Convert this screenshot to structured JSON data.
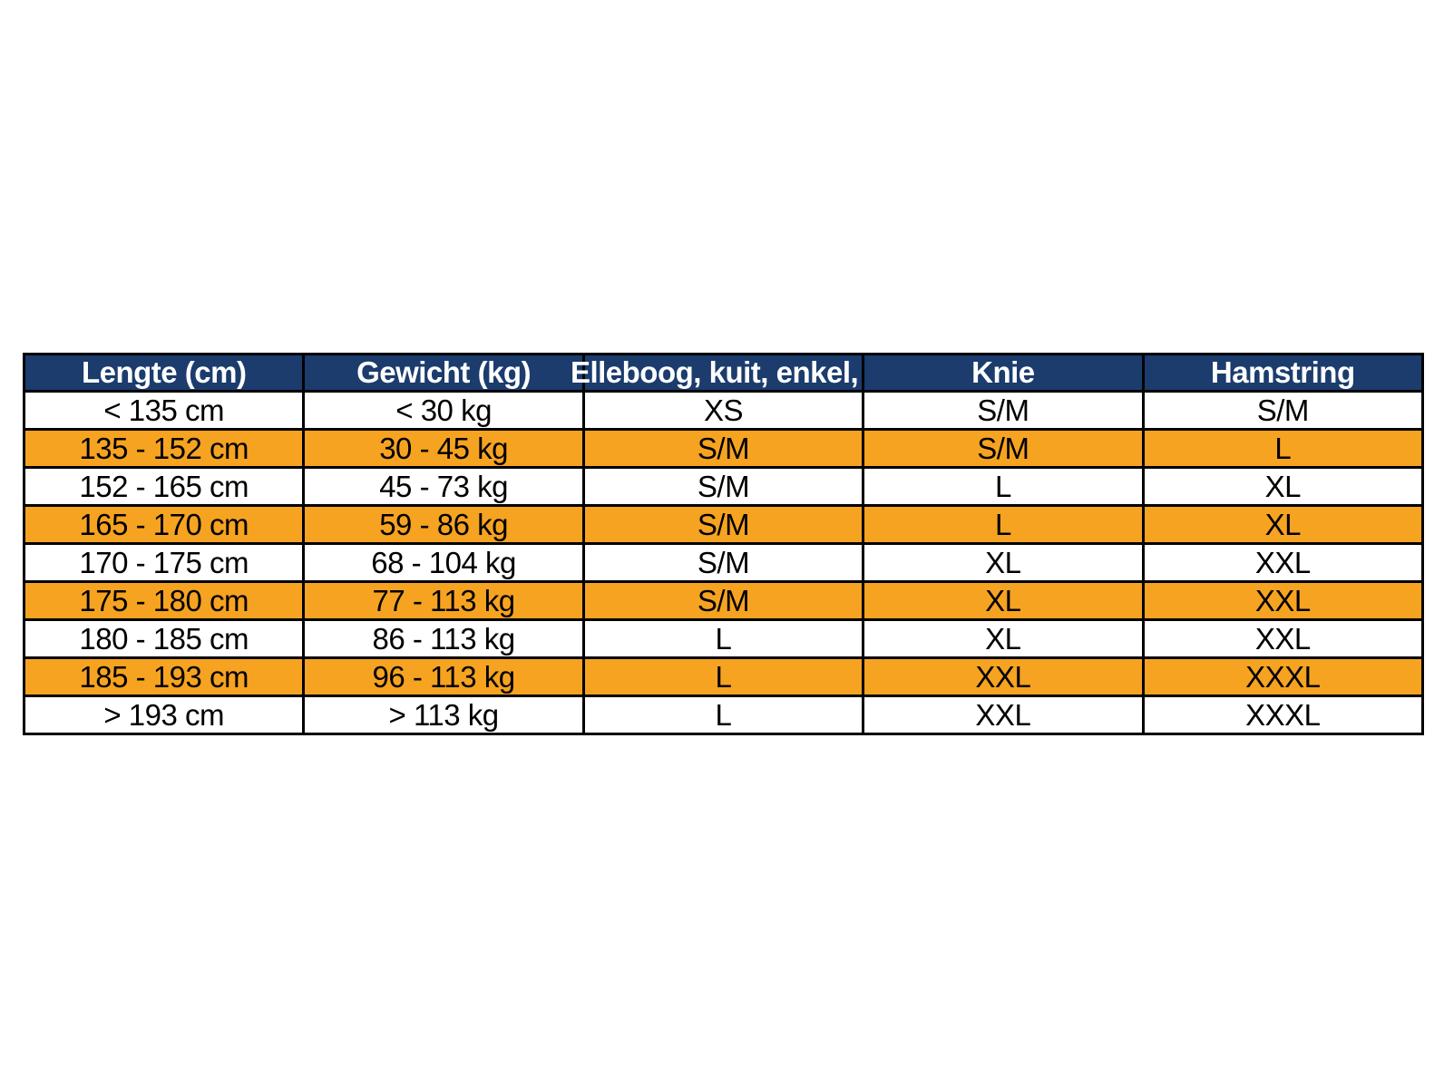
{
  "table": {
    "title": "maattabel",
    "columns": [
      {
        "id": "lengte",
        "label": "Lengte (cm)"
      },
      {
        "id": "gewicht",
        "label": "Gewicht (kg)"
      },
      {
        "id": "elleboog",
        "label": "Elleboog, kuit, enkel,"
      },
      {
        "id": "knie",
        "label": "Knie"
      },
      {
        "id": "hamstring",
        "label": "Hamstring"
      }
    ],
    "rows": [
      {
        "highlighted": false,
        "cells": [
          "< 135 cm",
          "< 30 kg",
          "XS",
          "S/M",
          "S/M"
        ]
      },
      {
        "highlighted": true,
        "cells": [
          "135 - 152 cm",
          "30 - 45 kg",
          "S/M",
          "S/M",
          "L"
        ]
      },
      {
        "highlighted": false,
        "cells": [
          "152 - 165 cm",
          "45 - 73 kg",
          "S/M",
          "L",
          "XL"
        ]
      },
      {
        "highlighted": true,
        "cells": [
          "165 - 170 cm",
          "59 - 86 kg",
          "S/M",
          "L",
          "XL"
        ]
      },
      {
        "highlighted": false,
        "cells": [
          "170 - 175 cm",
          "68 - 104 kg",
          "S/M",
          "XL",
          "XXL"
        ]
      },
      {
        "highlighted": true,
        "cells": [
          "175 - 180 cm",
          "77 - 113 kg",
          "S/M",
          "XL",
          "XXL"
        ]
      },
      {
        "highlighted": false,
        "cells": [
          "180 - 185 cm",
          "86 - 113 kg",
          "L",
          "XL",
          "XXL"
        ]
      },
      {
        "highlighted": true,
        "cells": [
          "185 - 193 cm",
          "96 - 113 kg",
          "L",
          "XXL",
          "XXXL"
        ]
      },
      {
        "highlighted": false,
        "cells": [
          "> 193 cm",
          "> 113 kg",
          "L",
          "XXL",
          "XXXL"
        ]
      }
    ],
    "colors": {
      "header_bg": "#1B3C6D",
      "header_text": "#FFFFFF",
      "row_bg": "#FFFFFF",
      "row_highlight_bg": "#F6A321",
      "border": "#000000",
      "cell_text": "#000000"
    }
  }
}
